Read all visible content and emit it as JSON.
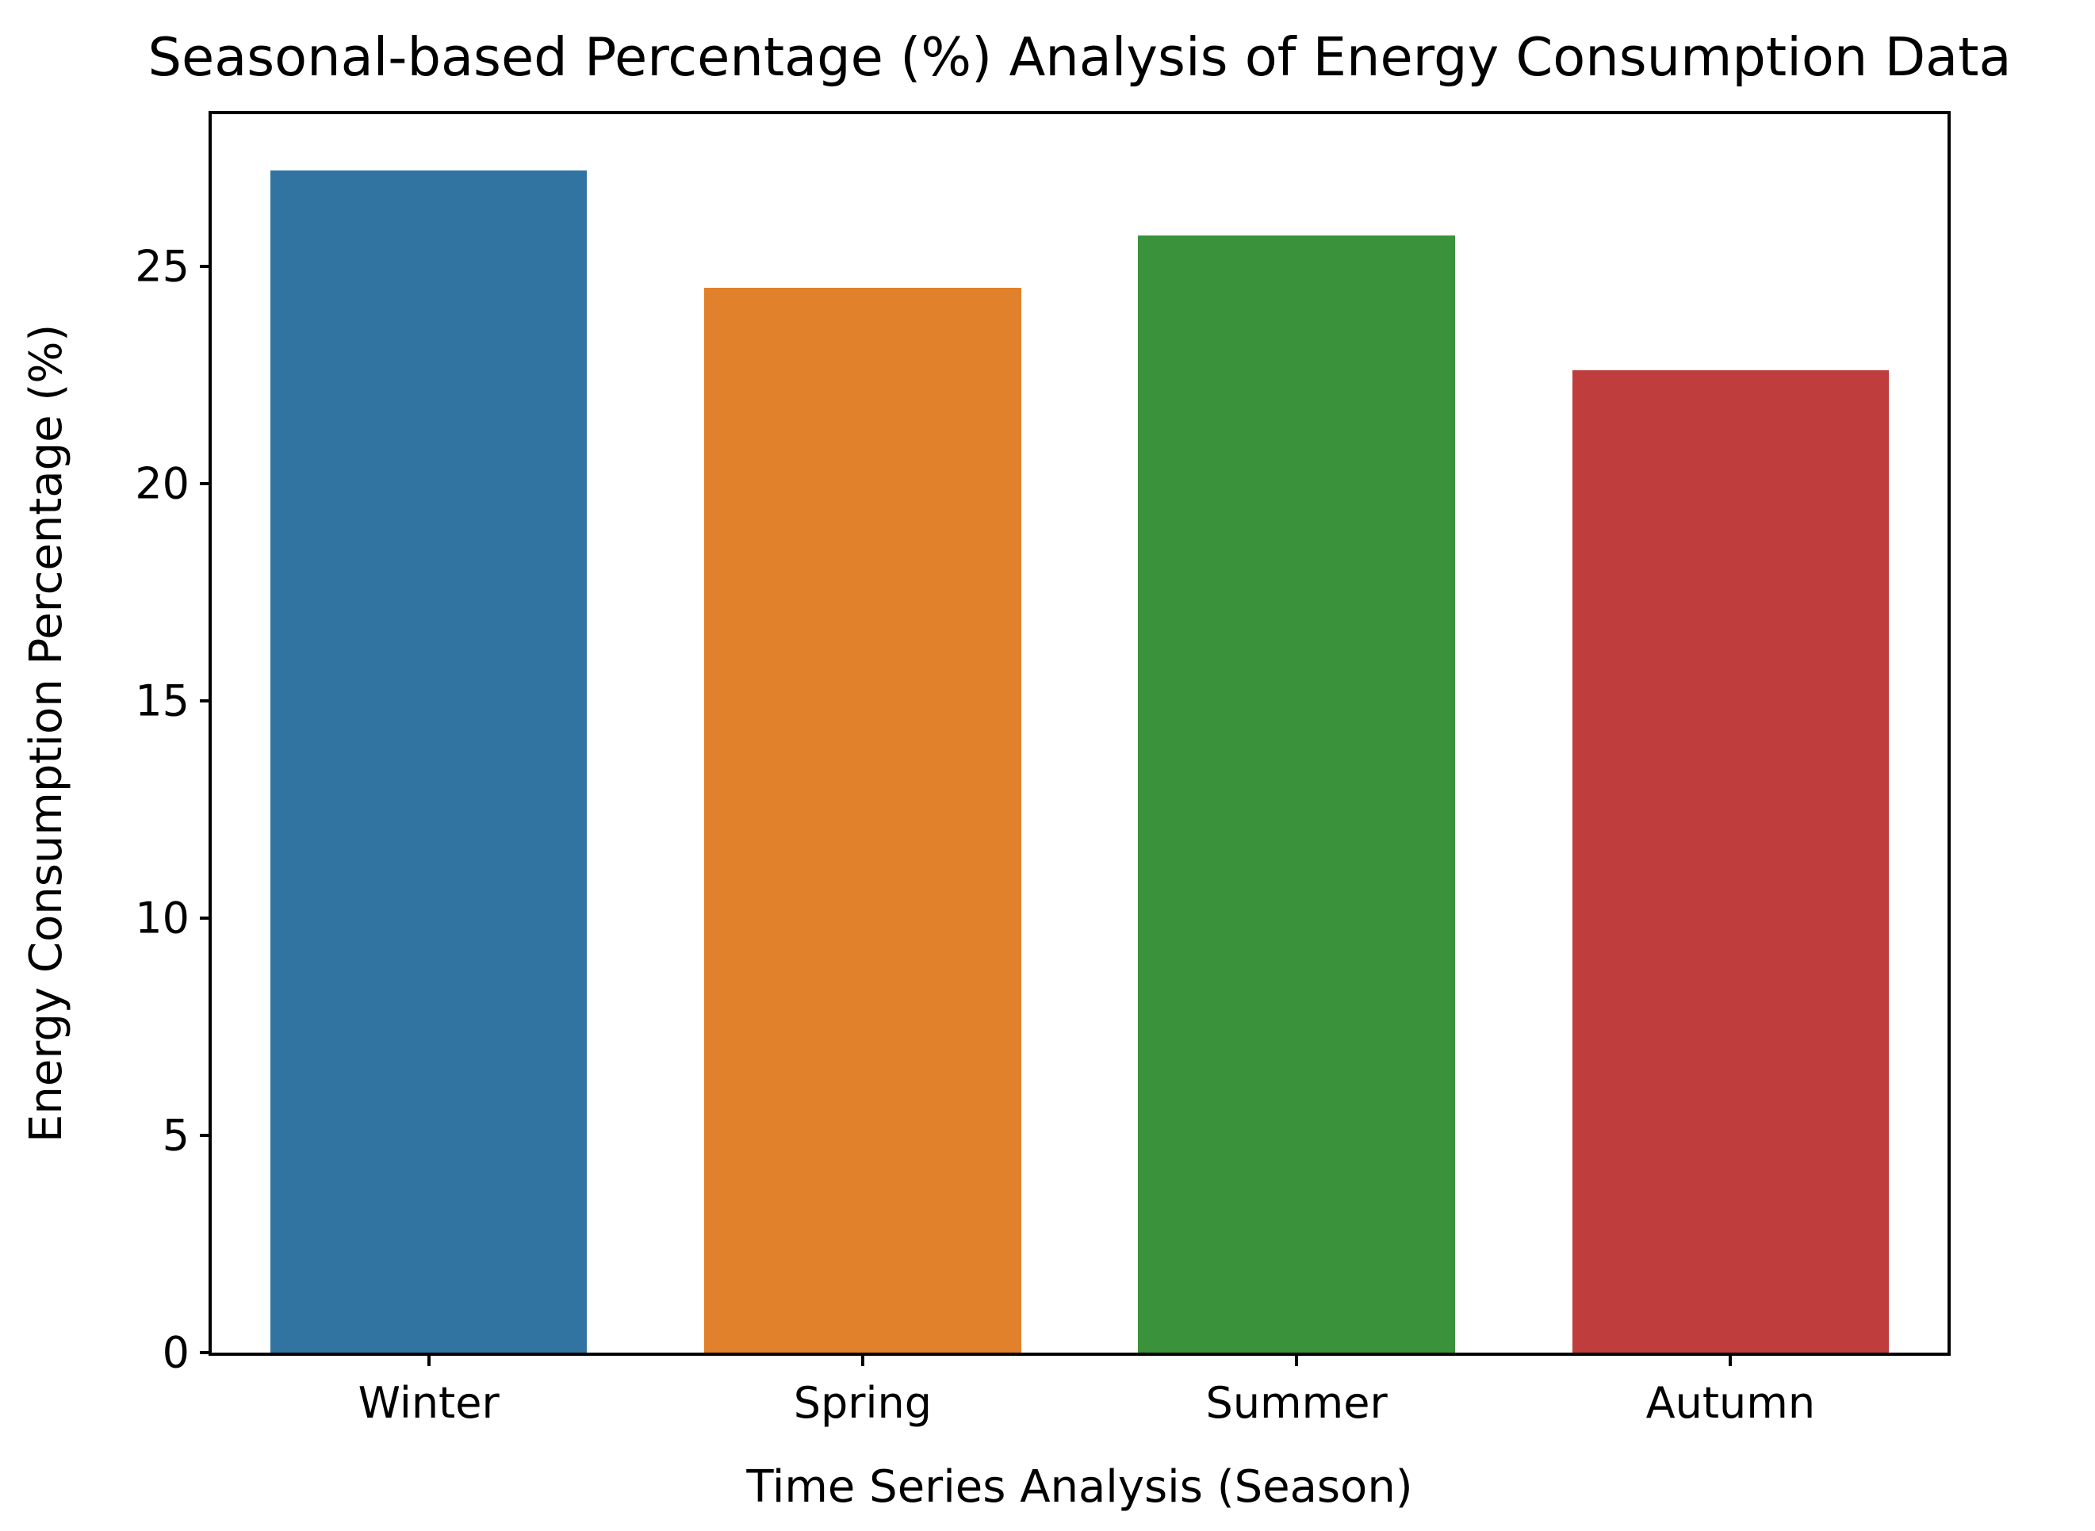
{
  "chart_data": {
    "type": "bar",
    "title": "Seasonal-based Percentage (%) Analysis of Energy Consumption Data",
    "xlabel": "Time Series Analysis (Season)",
    "ylabel": "Energy Consumption Percentage (%)",
    "categories": [
      "Winter",
      "Spring",
      "Summer",
      "Autumn"
    ],
    "values": [
      27.2,
      24.5,
      25.7,
      22.6
    ],
    "bar_colors": [
      "#3274a1",
      "#e1812c",
      "#3a923a",
      "#c03d3e"
    ],
    "yticks": [
      0,
      5,
      10,
      15,
      20,
      25
    ],
    "ylim": [
      0,
      28.5
    ],
    "grid": false,
    "legend_position": "none",
    "background_color": "#ffffff",
    "axis_color": "#000000"
  }
}
